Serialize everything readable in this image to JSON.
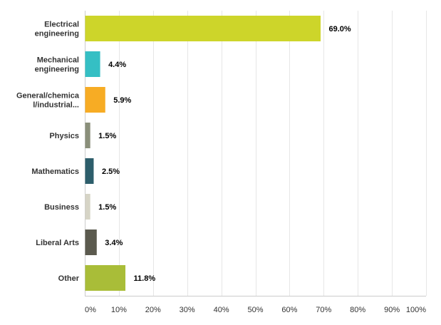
{
  "chart_data": {
    "type": "bar",
    "orientation": "horizontal",
    "categories": [
      [
        "Electrical",
        "engineering"
      ],
      [
        "Mechanical",
        "engineering"
      ],
      [
        "General/chemica",
        "l/industrial..."
      ],
      [
        "Physics"
      ],
      [
        "Mathematics"
      ],
      [
        "Business"
      ],
      [
        "Liberal Arts"
      ],
      [
        "Other"
      ]
    ],
    "values": [
      69.0,
      4.4,
      5.9,
      1.5,
      2.5,
      1.5,
      3.4,
      11.8
    ],
    "value_labels": [
      "69.0%",
      "4.4%",
      "5.9%",
      "1.5%",
      "2.5%",
      "1.5%",
      "3.4%",
      "11.8%"
    ],
    "colors": [
      "#cdd52a",
      "#35bfc4",
      "#f7ac24",
      "#8a8f7a",
      "#2d5e6b",
      "#d6d4c6",
      "#5b5a4e",
      "#a9bd38"
    ],
    "xlim": [
      0,
      100
    ],
    "x_ticks": [
      "0%",
      "10%",
      "20%",
      "30%",
      "40%",
      "50%",
      "60%",
      "70%",
      "80%",
      "90%",
      "100%"
    ],
    "grid": true,
    "title": "",
    "xlabel": "",
    "ylabel": ""
  }
}
